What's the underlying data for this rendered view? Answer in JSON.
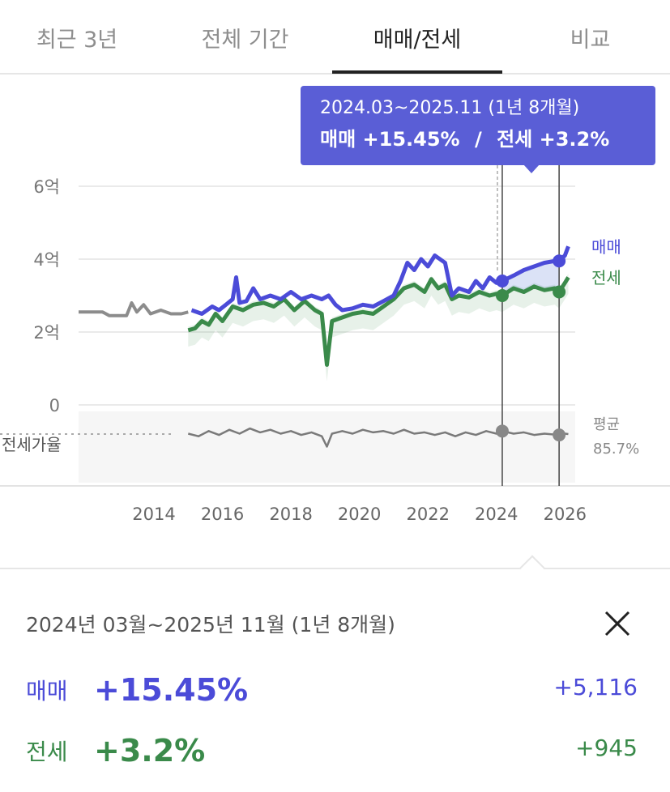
{
  "tabs": [
    {
      "label": "최근 3년",
      "active": false
    },
    {
      "label": "전체 기간",
      "active": false
    },
    {
      "label": "매매/전세",
      "active": true
    },
    {
      "label": "비교",
      "active": false
    }
  ],
  "tooltip": {
    "period": "2024.03~2025.11 (1년 8개월)",
    "sale_label": "매매",
    "sale_change": "+15.45%",
    "separator": "/",
    "jeonse_label": "전세",
    "jeonse_change": "+3.2%"
  },
  "colors": {
    "sale": "#4b4bd8",
    "jeonse": "#3a8a4a",
    "history": "#8c8c8c",
    "ratio": "#7a7a7a",
    "tooltip_bg": "#5a5ed6"
  },
  "chart_data": {
    "type": "line",
    "y_ticks": [
      "6억",
      "4억",
      "2억",
      "0"
    ],
    "ylim": [
      0,
      6
    ],
    "x_ticks": [
      "2014",
      "2016",
      "2018",
      "2020",
      "2022",
      "2024",
      "2026"
    ],
    "xlim": [
      2011.8,
      2026.3
    ],
    "legend": {
      "sale": "매매",
      "jeonse": "전세",
      "ratio": "평균",
      "ratio_value": "85.7%"
    },
    "ratio_axis_label": "전세가율",
    "grid": true,
    "selection": {
      "start": 2024.17,
      "end": 2025.83,
      "start_sale": 3.4,
      "end_sale": 3.95,
      "start_jeonse": 3.0,
      "end_jeonse": 3.1
    },
    "series": [
      {
        "key": "history",
        "values": [
          [
            2011.8,
            2.55
          ],
          [
            2012.5,
            2.55
          ],
          [
            2012.7,
            2.45
          ],
          [
            2013.2,
            2.45
          ],
          [
            2013.35,
            2.8
          ],
          [
            2013.5,
            2.55
          ],
          [
            2013.7,
            2.75
          ],
          [
            2013.9,
            2.5
          ],
          [
            2014.2,
            2.6
          ],
          [
            2014.5,
            2.5
          ],
          [
            2014.8,
            2.5
          ],
          [
            2015.0,
            2.55
          ]
        ]
      },
      {
        "key": "sale",
        "name": "매매",
        "values": [
          [
            2015.1,
            2.6
          ],
          [
            2015.4,
            2.5
          ],
          [
            2015.7,
            2.7
          ],
          [
            2015.9,
            2.6
          ],
          [
            2016.1,
            2.75
          ],
          [
            2016.3,
            2.9
          ],
          [
            2016.4,
            3.5
          ],
          [
            2016.5,
            2.8
          ],
          [
            2016.7,
            2.85
          ],
          [
            2016.9,
            3.2
          ],
          [
            2017.1,
            2.9
          ],
          [
            2017.4,
            3.0
          ],
          [
            2017.7,
            2.9
          ],
          [
            2018.0,
            3.1
          ],
          [
            2018.3,
            2.9
          ],
          [
            2018.6,
            3.0
          ],
          [
            2018.9,
            2.9
          ],
          [
            2019.1,
            3.0
          ],
          [
            2019.3,
            2.75
          ],
          [
            2019.5,
            2.6
          ],
          [
            2019.8,
            2.65
          ],
          [
            2020.1,
            2.75
          ],
          [
            2020.4,
            2.7
          ],
          [
            2020.7,
            2.85
          ],
          [
            2021.0,
            3.0
          ],
          [
            2021.2,
            3.4
          ],
          [
            2021.4,
            3.9
          ],
          [
            2021.6,
            3.7
          ],
          [
            2021.8,
            4.0
          ],
          [
            2022.0,
            3.8
          ],
          [
            2022.2,
            4.1
          ],
          [
            2022.5,
            3.9
          ],
          [
            2022.7,
            3.0
          ],
          [
            2022.9,
            3.2
          ],
          [
            2023.2,
            3.1
          ],
          [
            2023.4,
            3.4
          ],
          [
            2023.6,
            3.2
          ],
          [
            2023.8,
            3.5
          ],
          [
            2024.0,
            3.35
          ],
          [
            2024.17,
            3.4
          ],
          [
            2024.5,
            3.55
          ],
          [
            2024.8,
            3.7
          ],
          [
            2025.1,
            3.8
          ],
          [
            2025.4,
            3.9
          ],
          [
            2025.7,
            3.95
          ],
          [
            2025.83,
            3.95
          ],
          [
            2026.0,
            4.1
          ],
          [
            2026.1,
            4.35
          ]
        ]
      },
      {
        "key": "jeonse",
        "name": "전세",
        "values": [
          [
            2015.0,
            2.05
          ],
          [
            2015.2,
            2.1
          ],
          [
            2015.4,
            2.3
          ],
          [
            2015.6,
            2.2
          ],
          [
            2015.8,
            2.5
          ],
          [
            2016.0,
            2.3
          ],
          [
            2016.3,
            2.7
          ],
          [
            2016.6,
            2.6
          ],
          [
            2016.9,
            2.75
          ],
          [
            2017.2,
            2.8
          ],
          [
            2017.5,
            2.7
          ],
          [
            2017.8,
            2.9
          ],
          [
            2018.1,
            2.6
          ],
          [
            2018.4,
            2.85
          ],
          [
            2018.7,
            2.6
          ],
          [
            2018.9,
            2.5
          ],
          [
            2019.05,
            1.1
          ],
          [
            2019.2,
            2.3
          ],
          [
            2019.5,
            2.4
          ],
          [
            2019.8,
            2.5
          ],
          [
            2020.1,
            2.55
          ],
          [
            2020.4,
            2.5
          ],
          [
            2020.7,
            2.7
          ],
          [
            2021.0,
            2.9
          ],
          [
            2021.3,
            3.2
          ],
          [
            2021.6,
            3.3
          ],
          [
            2021.9,
            3.1
          ],
          [
            2022.1,
            3.45
          ],
          [
            2022.3,
            3.2
          ],
          [
            2022.5,
            3.3
          ],
          [
            2022.7,
            2.9
          ],
          [
            2022.9,
            3.0
          ],
          [
            2023.2,
            2.95
          ],
          [
            2023.5,
            3.1
          ],
          [
            2023.8,
            3.0
          ],
          [
            2024.0,
            3.05
          ],
          [
            2024.17,
            3.0
          ],
          [
            2024.5,
            3.2
          ],
          [
            2024.8,
            3.1
          ],
          [
            2025.1,
            3.25
          ],
          [
            2025.4,
            3.15
          ],
          [
            2025.7,
            3.2
          ],
          [
            2025.83,
            3.1
          ],
          [
            2026.0,
            3.35
          ],
          [
            2026.1,
            3.5
          ]
        ]
      },
      {
        "key": "ratio",
        "name": "전세가율",
        "values": [
          [
            2015.0,
            86
          ],
          [
            2015.3,
            84
          ],
          [
            2015.6,
            88
          ],
          [
            2015.9,
            85
          ],
          [
            2016.2,
            89
          ],
          [
            2016.5,
            86
          ],
          [
            2016.8,
            90
          ],
          [
            2017.1,
            87
          ],
          [
            2017.4,
            89
          ],
          [
            2017.7,
            86
          ],
          [
            2018.0,
            88
          ],
          [
            2018.3,
            85
          ],
          [
            2018.6,
            87
          ],
          [
            2018.9,
            84
          ],
          [
            2019.05,
            76
          ],
          [
            2019.2,
            86
          ],
          [
            2019.5,
            88
          ],
          [
            2019.8,
            86
          ],
          [
            2020.1,
            89
          ],
          [
            2020.4,
            87
          ],
          [
            2020.7,
            88
          ],
          [
            2021.0,
            86
          ],
          [
            2021.3,
            89
          ],
          [
            2021.6,
            86
          ],
          [
            2021.9,
            87
          ],
          [
            2022.2,
            85
          ],
          [
            2022.5,
            87
          ],
          [
            2022.8,
            84
          ],
          [
            2023.1,
            87
          ],
          [
            2023.4,
            85
          ],
          [
            2023.7,
            88
          ],
          [
            2024.0,
            86
          ],
          [
            2024.17,
            88
          ],
          [
            2024.5,
            86
          ],
          [
            2024.8,
            87
          ],
          [
            2025.1,
            85
          ],
          [
            2025.4,
            86
          ],
          [
            2025.83,
            85
          ],
          [
            2026.0,
            86
          ],
          [
            2026.1,
            85.7
          ]
        ]
      }
    ]
  },
  "summary": {
    "period": "2024년 03월~2025년 11월 (1년 8개월)",
    "sale_label": "매매",
    "sale_change": "+15.45%",
    "sale_amount": "+5,116",
    "jeonse_label": "전세",
    "jeonse_change": "+3.2%",
    "jeonse_amount": "+945"
  }
}
